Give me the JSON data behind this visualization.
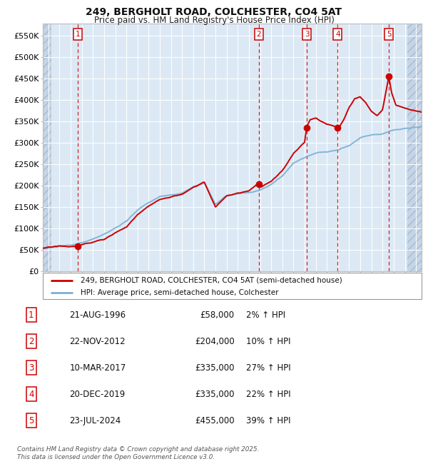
{
  "title_line1": "249, BERGHOLT ROAD, COLCHESTER, CO4 5AT",
  "title_line2": "Price paid vs. HM Land Registry's House Price Index (HPI)",
  "ylabel_ticks": [
    "£0",
    "£50K",
    "£100K",
    "£150K",
    "£200K",
    "£250K",
    "£300K",
    "£350K",
    "£400K",
    "£450K",
    "£500K",
    "£550K"
  ],
  "ytick_values": [
    0,
    50000,
    100000,
    150000,
    200000,
    250000,
    300000,
    350000,
    400000,
    450000,
    500000,
    550000
  ],
  "ylim": [
    0,
    580000
  ],
  "xlim_start": 1993.5,
  "xlim_end": 2027.5,
  "hpi_color": "#7bafd4",
  "price_color": "#cc0000",
  "plot_bg": "#dce9f5",
  "sale_points": [
    {
      "num": 1,
      "year": 1996.64,
      "price": 58000,
      "date": "21-AUG-1996",
      "pct": "2%"
    },
    {
      "num": 2,
      "year": 2012.9,
      "price": 204000,
      "date": "22-NOV-2012",
      "pct": "10%"
    },
    {
      "num": 3,
      "year": 2017.19,
      "price": 335000,
      "date": "10-MAR-2017",
      "pct": "27%"
    },
    {
      "num": 4,
      "year": 2019.97,
      "price": 335000,
      "date": "20-DEC-2019",
      "pct": "22%"
    },
    {
      "num": 5,
      "year": 2024.56,
      "price": 455000,
      "date": "23-JUL-2024",
      "pct": "39%"
    }
  ],
  "legend_label_price": "249, BERGHOLT ROAD, COLCHESTER, CO4 5AT (semi-detached house)",
  "legend_label_hpi": "HPI: Average price, semi-detached house, Colchester",
  "footer": "Contains HM Land Registry data © Crown copyright and database right 2025.\nThis data is licensed under the Open Government Licence v3.0.",
  "grid_color": "#ffffff",
  "vline_color": "#cc0000",
  "hatch_left_end": 1994.25,
  "hatch_right_start": 2026.25,
  "xtick_start": 1994,
  "xtick_end": 2028
}
